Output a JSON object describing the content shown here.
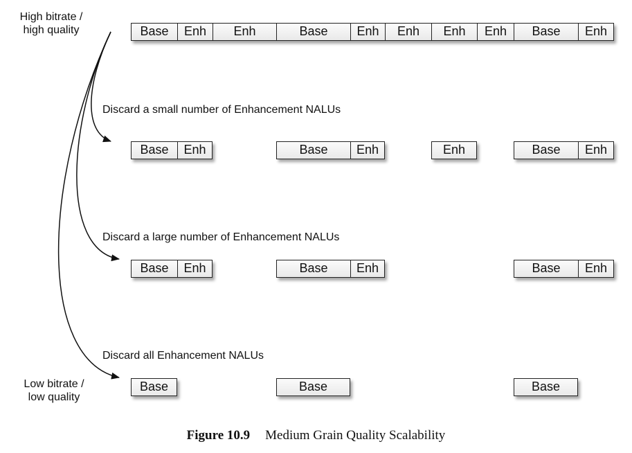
{
  "labels": {
    "high": [
      "High bitrate /",
      "high quality"
    ],
    "low": [
      "Low bitrate /",
      "low quality"
    ]
  },
  "rows": [
    {
      "label": "",
      "nalus": [
        "Base",
        "Enh",
        "Enh",
        "Base",
        "Enh",
        "Enh",
        "Enh",
        "Enh",
        "Base",
        "Enh"
      ],
      "present": [
        true,
        true,
        true,
        true,
        true,
        true,
        true,
        true,
        true,
        true
      ]
    },
    {
      "label": "Discard a small number of Enhancement NALUs",
      "nalus": [
        "Base",
        "Enh",
        "Enh",
        "Base",
        "Enh",
        "Enh",
        "Enh",
        "Enh",
        "Base",
        "Enh"
      ],
      "present": [
        true,
        true,
        false,
        true,
        true,
        false,
        true,
        false,
        true,
        true
      ]
    },
    {
      "label": "Discard a large number of Enhancement NALUs",
      "nalus": [
        "Base",
        "Enh",
        "Enh",
        "Base",
        "Enh",
        "Enh",
        "Enh",
        "Enh",
        "Base",
        "Enh"
      ],
      "present": [
        true,
        true,
        false,
        true,
        true,
        false,
        false,
        false,
        true,
        true
      ]
    },
    {
      "label": "Discard all Enhancement NALUs",
      "nalus": [
        "Base",
        "Enh",
        "Enh",
        "Base",
        "Enh",
        "Enh",
        "Enh",
        "Enh",
        "Base",
        "Enh"
      ],
      "present": [
        true,
        false,
        false,
        true,
        false,
        false,
        false,
        false,
        true,
        false
      ]
    }
  ],
  "caption": {
    "number": "Figure 10.9",
    "title": "Medium Grain Quality Scalability"
  }
}
